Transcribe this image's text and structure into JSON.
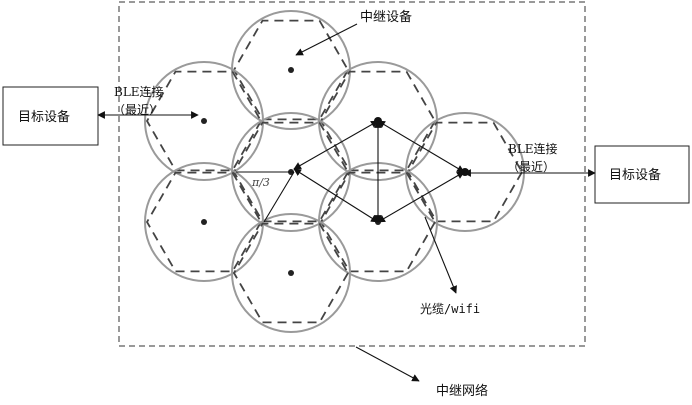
{
  "labels": {
    "relay_device": "中继设备",
    "target_device_left": "目标设备",
    "target_device_right": "目标设备",
    "ble_left_line1": "BLE连接",
    "ble_left_line2": "（最近）",
    "ble_right_line1": "BLE连接",
    "ble_right_line2": "（最近）",
    "angle": "π/3",
    "cable_wifi": "光缆/wifi",
    "relay_network": "中继网络"
  }
}
